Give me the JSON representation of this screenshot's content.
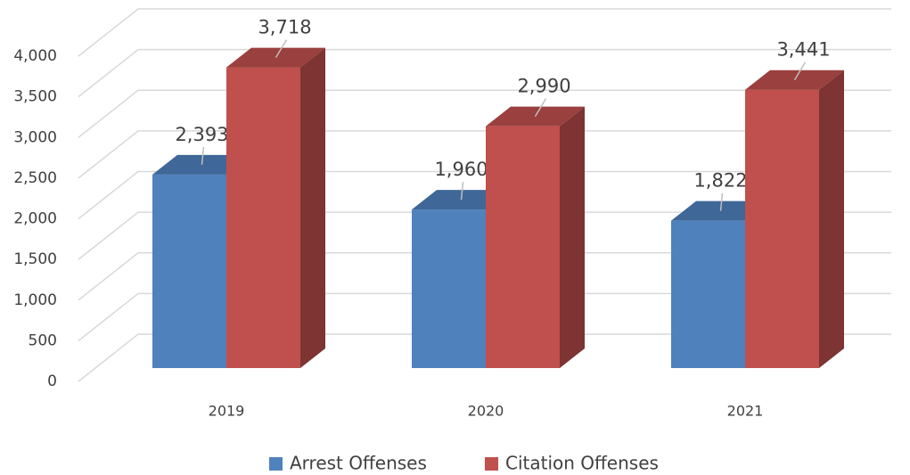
{
  "chart_data": {
    "type": "bar3d",
    "categories": [
      "2019",
      "2020",
      "2021"
    ],
    "series": [
      {
        "name": "Arrest Offenses",
        "color": "#4f81bd",
        "values": [
          2393,
          1960,
          1822
        ],
        "value_labels": [
          "2,393",
          "1,960",
          "1,822"
        ]
      },
      {
        "name": "Citation Offenses",
        "color": "#c0504d",
        "values": [
          3718,
          2990,
          3441
        ],
        "value_labels": [
          "3,718",
          "2,990",
          "3,441"
        ]
      }
    ],
    "ylim": [
      0,
      4000
    ],
    "yticks": [
      0,
      500,
      {
        "value": 1000,
        "label": "1,000"
      },
      {
        "value": 1500,
        "label": "1,500"
      },
      {
        "value": 2000,
        "label": "2,000"
      },
      {
        "value": 2500,
        "label": "2,500"
      },
      {
        "value": 3000,
        "label": "3,000"
      },
      {
        "value": 3500,
        "label": "3,500"
      },
      {
        "value": 4000,
        "label": "4,000"
      }
    ],
    "grid": true,
    "legend": "bottom"
  }
}
